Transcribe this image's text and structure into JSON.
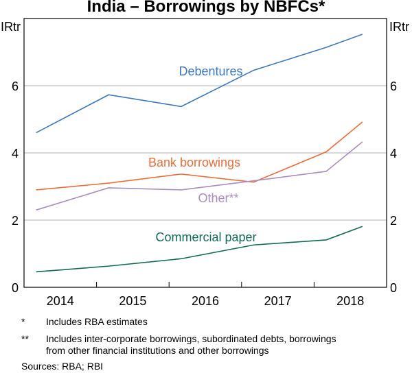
{
  "chart_data": {
    "type": "line",
    "title": "India – Borrowings by NBFCs*",
    "ylabel_left": "IRtr",
    "ylabel_right": "IRtr",
    "ylim": [
      0,
      8
    ],
    "yticks": [
      0,
      2,
      4,
      6
    ],
    "xlim": [
      "2014-01",
      "2018-12"
    ],
    "xtick_labels": [
      "2014",
      "2015",
      "2016",
      "2017",
      "2018"
    ],
    "grid": true,
    "x": [
      "2014-03",
      "2015-03",
      "2016-03",
      "2017-03",
      "2018-03",
      "2018-09"
    ],
    "series": [
      {
        "name": "Debentures",
        "color": "#3a78c4",
        "values": [
          4.6,
          5.73,
          5.38,
          6.46,
          7.14,
          7.53
        ]
      },
      {
        "name": "Bank borrowings",
        "color": "#f26b35",
        "values": [
          2.9,
          3.1,
          3.37,
          3.13,
          4.03,
          4.92
        ]
      },
      {
        "name": "Other**",
        "color": "#a98cc4",
        "values": [
          2.3,
          2.96,
          2.9,
          3.17,
          3.45,
          4.33
        ]
      },
      {
        "name": "Commercial paper",
        "color": "#0f6b55",
        "values": [
          0.46,
          0.63,
          0.85,
          1.26,
          1.41,
          1.81
        ]
      }
    ]
  },
  "footnotes": [
    {
      "mark": "*",
      "text": "Includes RBA estimates"
    },
    {
      "mark": "**",
      "text": "Includes inter-corporate borrowings, subordinated debts, borrowings",
      "text2": "from other financial institutions and other borrowings"
    }
  ],
  "sources": "Sources: RBA; RBI"
}
